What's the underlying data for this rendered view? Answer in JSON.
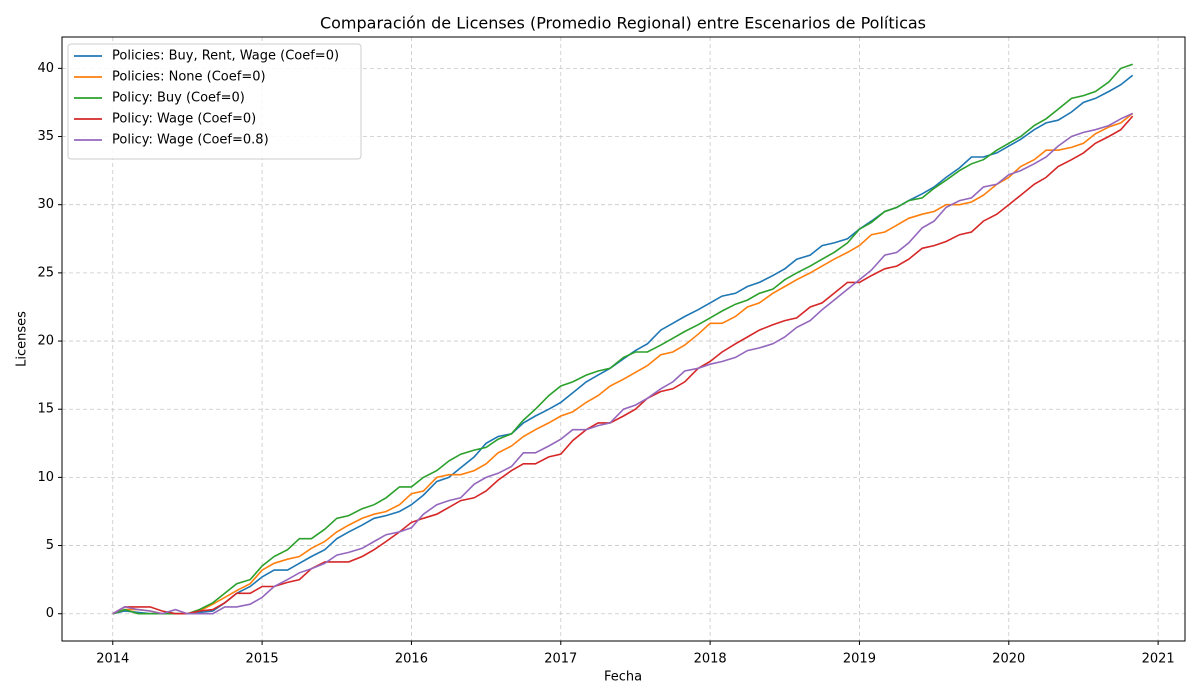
{
  "chart_data": {
    "type": "line",
    "title": "Comparación de Licenses (Promedio Regional) entre Escenarios de Políticas",
    "x_label": "Fecha",
    "y_label": "Licenses",
    "x": [
      2014,
      2014.08,
      2014.17,
      2014.25,
      2014.33,
      2014.42,
      2014.5,
      2014.58,
      2014.67,
      2014.75,
      2014.83,
      2014.92,
      2015,
      2015.08,
      2015.17,
      2015.25,
      2015.33,
      2015.42,
      2015.5,
      2015.58,
      2015.67,
      2015.75,
      2015.83,
      2015.92,
      2016,
      2016.08,
      2016.17,
      2016.25,
      2016.33,
      2016.42,
      2016.5,
      2016.58,
      2016.67,
      2016.75,
      2016.83,
      2016.92,
      2017,
      2017.08,
      2017.17,
      2017.25,
      2017.33,
      2017.42,
      2017.5,
      2017.58,
      2017.67,
      2017.75,
      2017.83,
      2017.92,
      2018,
      2018.08,
      2018.17,
      2018.25,
      2018.33,
      2018.42,
      2018.5,
      2018.58,
      2018.67,
      2018.75,
      2018.83,
      2018.92,
      2019,
      2019.08,
      2019.17,
      2019.25,
      2019.33,
      2019.42,
      2019.5,
      2019.58,
      2019.67,
      2019.75,
      2019.83,
      2019.92,
      2020,
      2020.08,
      2020.17,
      2020.25,
      2020.33,
      2020.42,
      2020.5,
      2020.58,
      2020.67,
      2020.75,
      2020.83
    ],
    "series": [
      {
        "name": "Policies: Buy, Rent, Wage (Coef=0)",
        "color": "#1f77b4",
        "values": [
          0,
          0.2,
          0.1,
          0,
          0,
          0,
          0,
          0.1,
          0.2,
          0.8,
          1.5,
          2.0,
          2.7,
          3.2,
          3.2,
          3.7,
          4.2,
          4.7,
          5.5,
          6.0,
          6.5,
          7.0,
          7.2,
          7.5,
          8.0,
          8.7,
          9.7,
          10.0,
          10.7,
          11.5,
          12.5,
          13.0,
          13.2,
          14.0,
          14.5,
          15.0,
          15.5,
          16.2,
          17.0,
          17.5,
          18.0,
          18.7,
          19.3,
          19.8,
          20.8,
          21.3,
          21.8,
          22.3,
          22.8,
          23.3,
          23.5,
          24.0,
          24.3,
          24.8,
          25.3,
          26.0,
          26.3,
          27.0,
          27.2,
          27.5,
          28.2,
          28.8,
          29.5,
          29.8,
          30.3,
          30.8,
          31.3,
          32.0,
          32.7,
          33.5,
          33.5,
          33.8,
          34.3,
          34.8,
          35.5,
          36.0,
          36.2,
          36.8,
          37.5,
          37.8,
          38.3,
          38.8,
          39.5
        ]
      },
      {
        "name": "Policies: None (Coef=0)",
        "color": "#ff7f0e",
        "values": [
          0,
          0.3,
          0.3,
          0.2,
          0,
          0,
          0,
          0.2,
          0.7,
          1.2,
          1.7,
          2.2,
          3.2,
          3.7,
          4.0,
          4.2,
          4.8,
          5.3,
          6.0,
          6.5,
          7.0,
          7.3,
          7.5,
          8.0,
          8.8,
          9.0,
          10.0,
          10.2,
          10.2,
          10.5,
          11.0,
          11.8,
          12.3,
          13.0,
          13.5,
          14.0,
          14.5,
          14.8,
          15.5,
          16.0,
          16.7,
          17.2,
          17.7,
          18.2,
          19.0,
          19.2,
          19.7,
          20.5,
          21.3,
          21.3,
          21.8,
          22.5,
          22.8,
          23.5,
          24.0,
          24.5,
          25.0,
          25.5,
          26.0,
          26.5,
          27.0,
          27.8,
          28.0,
          28.5,
          29.0,
          29.3,
          29.5,
          30.0,
          30.0,
          30.2,
          30.7,
          31.5,
          32.0,
          32.8,
          33.3,
          34.0,
          34.0,
          34.2,
          34.5,
          35.2,
          35.7,
          36.0,
          36.7
        ]
      },
      {
        "name": "Policy: Buy (Coef=0)",
        "color": "#2ca02c",
        "values": [
          0,
          0.3,
          0,
          0,
          0,
          0,
          0,
          0.3,
          0.8,
          1.5,
          2.2,
          2.5,
          3.5,
          4.2,
          4.7,
          5.5,
          5.5,
          6.2,
          7.0,
          7.2,
          7.7,
          8.0,
          8.5,
          9.3,
          9.3,
          10.0,
          10.5,
          11.2,
          11.7,
          12.0,
          12.2,
          12.8,
          13.2,
          14.2,
          15.0,
          16.0,
          16.7,
          17.0,
          17.5,
          17.8,
          18.0,
          18.8,
          19.2,
          19.2,
          19.7,
          20.2,
          20.7,
          21.2,
          21.7,
          22.2,
          22.7,
          23.0,
          23.5,
          23.8,
          24.5,
          25.0,
          25.5,
          26.0,
          26.5,
          27.2,
          28.2,
          28.7,
          29.5,
          29.8,
          30.3,
          30.5,
          31.2,
          31.8,
          32.5,
          33.0,
          33.3,
          34.0,
          34.5,
          35.0,
          35.8,
          36.3,
          37.0,
          37.8,
          38.0,
          38.3,
          39.0,
          40.0,
          40.3
        ]
      },
      {
        "name": "Policy: Wage (Coef=0)",
        "color": "#d62728",
        "values": [
          0,
          0.5,
          0.5,
          0.5,
          0.2,
          0,
          0,
          0.2,
          0.3,
          0.8,
          1.5,
          1.5,
          2.0,
          2.0,
          2.3,
          2.5,
          3.3,
          3.8,
          3.8,
          3.8,
          4.2,
          4.7,
          5.3,
          6.0,
          6.7,
          7.0,
          7.3,
          7.8,
          8.3,
          8.5,
          9.0,
          9.8,
          10.5,
          11.0,
          11.0,
          11.5,
          11.7,
          12.7,
          13.5,
          14.0,
          14.0,
          14.5,
          15.0,
          15.8,
          16.3,
          16.5,
          17.0,
          18.0,
          18.5,
          19.2,
          19.8,
          20.3,
          20.8,
          21.2,
          21.5,
          21.7,
          22.5,
          22.8,
          23.5,
          24.3,
          24.3,
          24.8,
          25.3,
          25.5,
          26.0,
          26.8,
          27.0,
          27.3,
          27.8,
          28.0,
          28.8,
          29.3,
          30.0,
          30.7,
          31.5,
          32.0,
          32.8,
          33.3,
          33.8,
          34.5,
          35.0,
          35.5,
          36.5
        ]
      },
      {
        "name": "Policy: Wage (Coef=0.8)",
        "color": "#9467bd",
        "values": [
          0,
          0.5,
          0.3,
          0.2,
          0,
          0.3,
          0,
          0,
          0,
          0.5,
          0.5,
          0.7,
          1.2,
          2.0,
          2.5,
          3.0,
          3.3,
          3.7,
          4.3,
          4.5,
          4.8,
          5.3,
          5.8,
          6.0,
          6.3,
          7.3,
          8.0,
          8.3,
          8.5,
          9.5,
          10.0,
          10.3,
          10.8,
          11.8,
          11.8,
          12.3,
          12.8,
          13.5,
          13.5,
          13.8,
          14.0,
          15.0,
          15.3,
          15.8,
          16.5,
          17.0,
          17.8,
          18.0,
          18.3,
          18.5,
          18.8,
          19.3,
          19.5,
          19.8,
          20.3,
          21.0,
          21.5,
          22.3,
          23.0,
          23.8,
          24.5,
          25.2,
          26.3,
          26.5,
          27.2,
          28.3,
          28.8,
          29.8,
          30.3,
          30.5,
          31.3,
          31.5,
          32.2,
          32.5,
          33.0,
          33.5,
          34.3,
          35.0,
          35.3,
          35.5,
          35.8,
          36.3,
          36.7
        ]
      }
    ],
    "xlim": [
      2013.66,
      2021.18
    ],
    "xticks": [
      2014,
      2015,
      2016,
      2017,
      2018,
      2019,
      2020,
      2021
    ],
    "ylim": [
      -2,
      42.3
    ],
    "yticks": [
      0,
      5,
      10,
      15,
      20,
      25,
      30,
      35,
      40
    ],
    "grid": true,
    "legend": "upper left"
  }
}
